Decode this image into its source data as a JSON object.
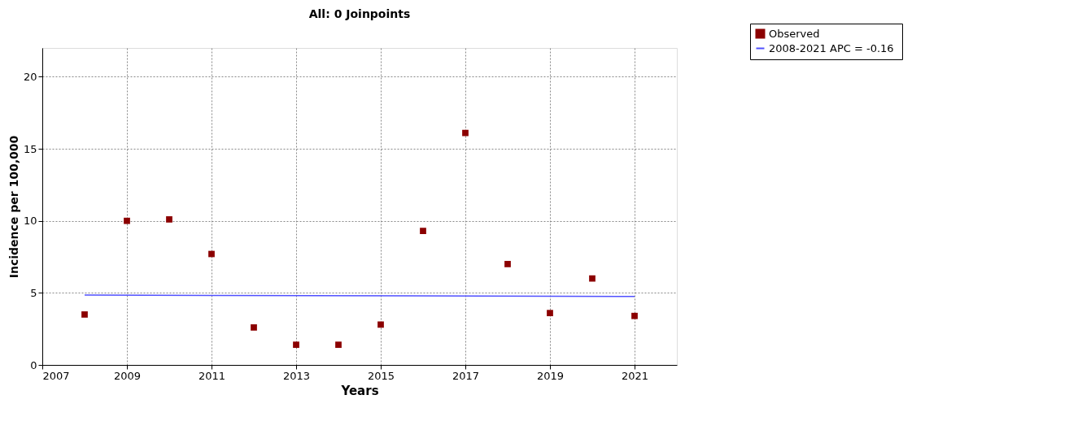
{
  "chart_data": {
    "type": "scatter",
    "title": "All: 0 Joinpoints",
    "xlabel": "Years",
    "ylabel": "Incidence per 100,000",
    "x": [
      2008,
      2009,
      2010,
      2011,
      2012,
      2013,
      2014,
      2015,
      2016,
      2017,
      2018,
      2019,
      2020,
      2021
    ],
    "series": [
      {
        "name": "Observed",
        "color": "#8b0000",
        "marker": "square",
        "values": [
          3.5,
          10.0,
          10.1,
          7.7,
          2.6,
          1.4,
          1.4,
          2.8,
          9.3,
          16.1,
          7.0,
          3.6,
          6.0,
          3.4
        ]
      },
      {
        "name": "2008-2021 APC  = -0.16",
        "type": "line",
        "color": "#5050ff",
        "x": [
          2008,
          2021
        ],
        "values": [
          4.85,
          4.75
        ]
      }
    ],
    "xlim": [
      2007,
      2022
    ],
    "xticks": [
      2007,
      2009,
      2011,
      2013,
      2015,
      2017,
      2019,
      2021
    ],
    "ylim": [
      0,
      22
    ],
    "yticks": [
      0,
      5,
      10,
      15,
      20
    ],
    "grid": true,
    "legend": "top right",
    "line_style": "solid"
  }
}
